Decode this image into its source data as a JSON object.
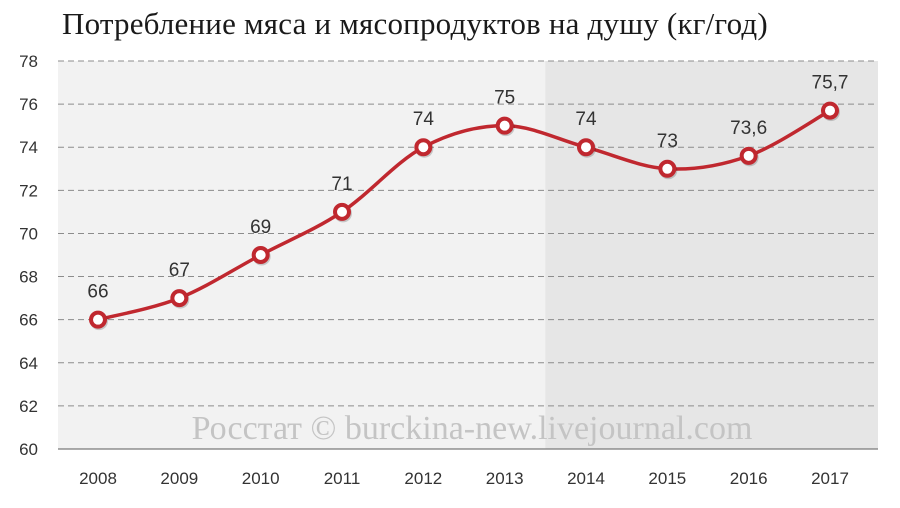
{
  "title": "Потребление мяса и мясопродуктов на душу (кг/год)",
  "watermark": "Росстат © burckina-new.livejournal.com",
  "colors": {
    "line": "#c0282f",
    "marker_fill": "#ffffff",
    "plot_bg": "#f2f2f2",
    "highlight_bg": "#e6e6e6",
    "grid": "#8c8c8c"
  },
  "chart_data": {
    "type": "line",
    "title": "Потребление мяса и мясопродуктов на душу (кг/год)",
    "xlabel": "",
    "ylabel": "",
    "ylim": [
      60,
      78
    ],
    "yticks": [
      "60",
      "62",
      "64",
      "66",
      "68",
      "70",
      "72",
      "74",
      "76",
      "78"
    ],
    "categories": [
      "2008",
      "2009",
      "2010",
      "2011",
      "2012",
      "2013",
      "2014",
      "2015",
      "2016",
      "2017"
    ],
    "values": [
      66,
      67,
      69,
      71,
      74,
      75,
      74,
      73,
      73.6,
      75.7
    ],
    "data_labels": [
      "66",
      "67",
      "69",
      "71",
      "74",
      "75",
      "74",
      "73",
      "73,6",
      "75,7"
    ],
    "highlight_from": "2014",
    "grid": true,
    "legend": "none"
  }
}
